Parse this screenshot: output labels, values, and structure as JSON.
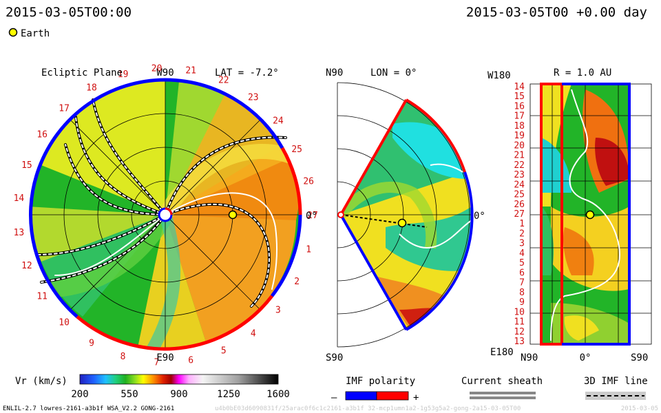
{
  "header": {
    "left_timestamp": "2015-03-05T00:00",
    "right_timestamp": "2015-03-05T00 +0.00 day",
    "legend_earth": "Earth"
  },
  "chart_data": [
    {
      "type": "heatmap",
      "title": "Ecliptic Plane",
      "annotation": "LAT = -7.2°",
      "top_label": "W90",
      "bottom_label": "E90",
      "right_label": "0°",
      "carrington_ticks": [
        "27",
        "1",
        "2",
        "3",
        "4",
        "5",
        "6",
        "7",
        "8",
        "9",
        "10",
        "11",
        "12",
        "13",
        "14",
        "15",
        "16",
        "17",
        "18",
        "19",
        "20",
        "21",
        "22",
        "23",
        "24",
        "25",
        "26"
      ],
      "earth": {
        "r_au": 1.0,
        "lon_deg": 0
      },
      "boundary_polarity": {
        "positive": "red",
        "negative": "blue"
      }
    },
    {
      "type": "heatmap",
      "title": "LON = 0°",
      "top_label": "N90",
      "bottom_label": "S90",
      "right_label": "0°",
      "lat_range_deg": [
        -60,
        60
      ]
    },
    {
      "type": "heatmap",
      "title": "R = 1.0 AU",
      "top_left_label": "W180",
      "bottom_left_label": "E180",
      "x_labels": [
        "N90",
        "0°",
        "S90"
      ],
      "y_ticks": [
        "14",
        "15",
        "16",
        "17",
        "18",
        "19",
        "20",
        "21",
        "22",
        "23",
        "24",
        "25",
        "26",
        "27",
        "1",
        "2",
        "3",
        "4",
        "5",
        "6",
        "7",
        "8",
        "9",
        "10",
        "11",
        "12",
        "13"
      ]
    }
  ],
  "colorbar": {
    "label": "Vr (km/s)",
    "ticks": [
      "200",
      "550",
      "900",
      "1250",
      "1600"
    ],
    "range": [
      200,
      1600
    ]
  },
  "legends": {
    "imf_title": "IMF polarity",
    "imf_minus": "–",
    "imf_plus": "+",
    "sheath_title": "Current sheath",
    "imf3d_title": "3D IMF line"
  },
  "footer": {
    "model": "ENLIL-2.7 lowres-2161-a3b1f WSA_V2.2 GONG-2161",
    "run_id": "u4b0bE03d6090831f/25arac0f6c1c2161-a3b1f 32-mcp1umn1a2-1g53g5a2-gong-2a15-03-05T00",
    "run_date": "2015-03-05"
  },
  "colors": {
    "positive_polarity": "#ff0000",
    "negative_polarity": "#0000ff",
    "tick_red": "#d01010"
  }
}
